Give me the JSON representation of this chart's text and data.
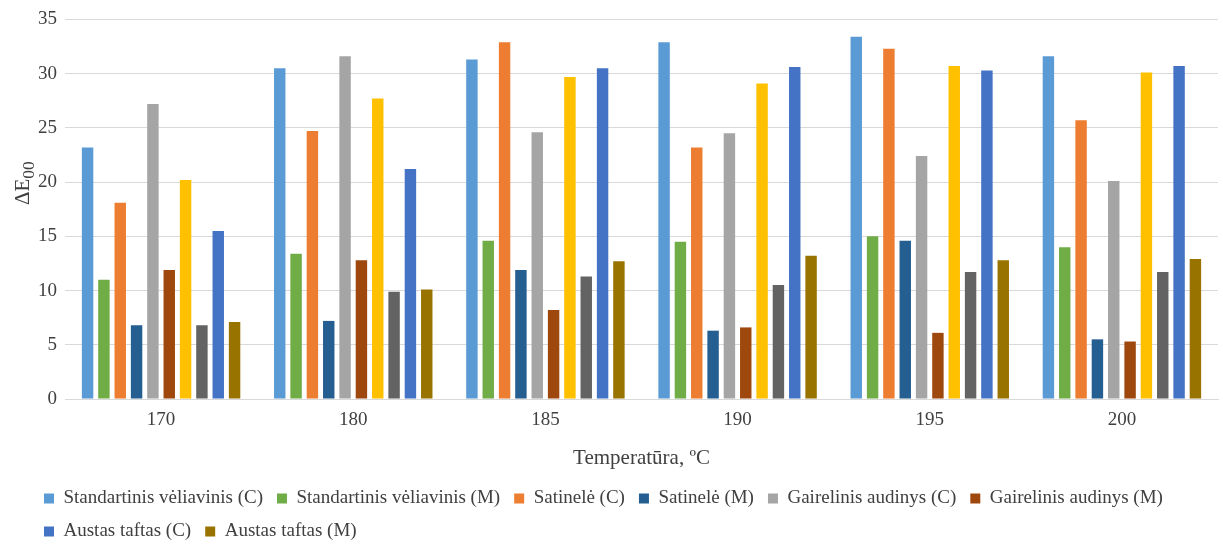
{
  "chart_data": {
    "type": "bar",
    "xlabel": "Temperatūra, ºC",
    "ylabel": "ΔE$_{00}$",
    "categories": [
      "170",
      "180",
      "185",
      "190",
      "195",
      "200"
    ],
    "ylim": [
      0,
      35
    ],
    "yticks": [
      0,
      5,
      10,
      15,
      20,
      25,
      30,
      35
    ],
    "grid": "y",
    "legend": "bottom",
    "series": [
      {
        "name": "Standartinis vėliavinis (C)",
        "color": "#5b9bd5",
        "values": [
          23.2,
          30.5,
          31.3,
          32.9,
          33.4,
          31.6
        ]
      },
      {
        "name": "Standartinis vėliavinis (M)",
        "color": "#70ad47",
        "values": [
          11.0,
          13.4,
          14.6,
          14.5,
          15.0,
          14.0
        ]
      },
      {
        "name": "Satinelė (C)",
        "color": "#ed7d31",
        "values": [
          18.1,
          24.7,
          32.9,
          23.2,
          32.3,
          25.7
        ]
      },
      {
        "name": "Satinelė (M)",
        "color": "#255e91",
        "values": [
          6.8,
          7.2,
          11.9,
          6.3,
          14.6,
          5.5
        ]
      },
      {
        "name": "Gairelinis audinys (C)",
        "color": "#a5a5a5",
        "values": [
          27.2,
          31.6,
          24.6,
          24.5,
          22.4,
          20.1
        ]
      },
      {
        "name": "Gairelinis audinys (M)",
        "color": "#9e480e",
        "values": [
          11.9,
          12.8,
          8.2,
          6.6,
          6.1,
          5.3
        ]
      },
      {
        "color": "#ffc000",
        "values": [
          20.2,
          27.7,
          29.7,
          29.1,
          30.7,
          30.1
        ]
      },
      {
        "color": "#636363",
        "values": [
          6.8,
          9.9,
          11.3,
          10.5,
          11.7,
          11.7
        ]
      },
      {
        "name": "Austas taftas (C)",
        "color": "#4472c4",
        "values": [
          15.5,
          21.2,
          30.5,
          30.6,
          30.3,
          30.7
        ]
      },
      {
        "name": "Austas taftas (M)",
        "color": "#997300",
        "values": [
          7.1,
          10.1,
          12.7,
          13.2,
          12.8,
          12.9
        ]
      }
    ]
  }
}
